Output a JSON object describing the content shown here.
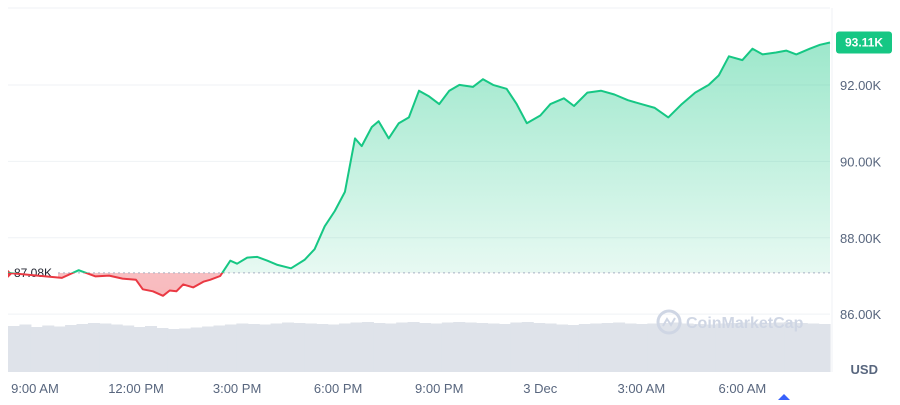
{
  "chart_data": {
    "type": "area",
    "x_tick_labels": [
      "9:00 AM",
      "12:00 PM",
      "3:00 PM",
      "6:00 PM",
      "9:00 PM",
      "3 Dec",
      "3:00 AM",
      "6:00 AM"
    ],
    "x_tick_hours": [
      9,
      12,
      15,
      18,
      21,
      24,
      27,
      30
    ],
    "x_range_hours": [
      8.2,
      32.6
    ],
    "y_tick_labels": [
      "86.00K",
      "88.00K",
      "90.00K",
      "92.00K"
    ],
    "y_ticks": [
      86000,
      88000,
      90000,
      92000
    ],
    "ylim": [
      85900,
      93700
    ],
    "unit_label": "USD",
    "reference_value": 87080,
    "reference_label": "87.08K",
    "current_label": "93.11K",
    "colors": {
      "up": "#16c784",
      "down": "#ea3943",
      "badge": "#16c784",
      "volume": "#dfe3ea"
    },
    "x": [
      8.2,
      9.8,
      10.3,
      10.8,
      11.2,
      11.6,
      12.0,
      12.2,
      12.5,
      12.8,
      13.0,
      13.2,
      13.4,
      13.7,
      14.0,
      14.2,
      14.5,
      14.8,
      15.0,
      15.3,
      15.6,
      15.9,
      16.2,
      16.6,
      17.0,
      17.3,
      17.6,
      17.9,
      18.2,
      18.5,
      18.7,
      19.0,
      19.2,
      19.5,
      19.8,
      20.1,
      20.4,
      20.7,
      21.0,
      21.3,
      21.6,
      22.0,
      22.3,
      22.6,
      23.0,
      23.3,
      23.6,
      24.0,
      24.3,
      24.7,
      25.0,
      25.4,
      25.8,
      26.2,
      26.6,
      27.0,
      27.4,
      27.8,
      28.2,
      28.6,
      29.0,
      29.3,
      29.6,
      30.0,
      30.3,
      30.6,
      31.0,
      31.3,
      31.6,
      32.0,
      32.3,
      32.6
    ],
    "y": [
      87080,
      86950,
      87150,
      86990,
      87010,
      86930,
      86900,
      86650,
      86600,
      86480,
      86620,
      86600,
      86780,
      86700,
      86850,
      86900,
      87000,
      87400,
      87320,
      87480,
      87500,
      87400,
      87290,
      87200,
      87420,
      87700,
      88300,
      88700,
      89200,
      90600,
      90400,
      90900,
      91050,
      90600,
      91000,
      91150,
      91850,
      91700,
      91500,
      91850,
      92000,
      91950,
      92150,
      92000,
      91900,
      91500,
      91000,
      91200,
      91500,
      91650,
      91450,
      91800,
      91850,
      91750,
      91600,
      91500,
      91400,
      91150,
      91500,
      91800,
      92000,
      92250,
      92750,
      92650,
      92950,
      92800,
      92850,
      92900,
      92800,
      92950,
      93050,
      93110
    ],
    "volume": [
      0.92,
      0.95,
      0.9,
      0.93,
      0.91,
      0.94,
      0.96,
      0.98,
      0.97,
      0.95,
      0.93,
      0.9,
      0.92,
      0.88,
      0.86,
      0.87,
      0.89,
      0.91,
      0.93,
      0.95,
      0.97,
      0.96,
      0.95,
      0.97,
      0.99,
      0.98,
      0.97,
      0.96,
      0.95,
      0.97,
      0.99,
      1.0,
      0.98,
      0.97,
      0.99,
      1.0,
      0.98,
      0.97,
      0.99,
      1.0,
      0.99,
      0.98,
      0.97,
      0.96,
      0.99,
      1.0,
      0.98,
      0.97,
      0.95,
      0.94,
      0.96,
      0.97,
      0.98,
      0.99,
      0.97,
      0.96,
      0.97,
      0.98,
      0.99,
      0.97,
      0.96,
      0.95,
      0.97,
      0.98,
      0.99,
      0.97,
      0.98,
      0.99,
      1.0,
      0.98,
      0.97,
      0.96
    ],
    "grid": true,
    "legend": "none"
  },
  "watermark": {
    "text": "CoinMarketCap",
    "icon": "coinmarketcap-logo-icon"
  }
}
